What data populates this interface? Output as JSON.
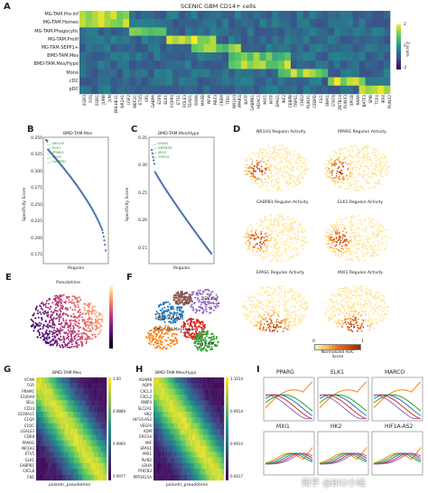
{
  "panelA": {
    "label": "A",
    "title": "SCENIC GBM CD14+ cells",
    "rows": [
      "MG-TAM.Pro-inf",
      "MG-TAM.Homeo",
      "MG-TAM.Phagocytic",
      "MG-TAM.Prolif",
      "MG-TAM.SEPP1+",
      "BMD-TAM.Mes",
      "BMD-TAM.Mes/Hypo",
      "Mono",
      "cDC",
      "pDC"
    ],
    "cols": [
      "EGR3",
      "FOS",
      "EGR1",
      "JUNB",
      "JUN",
      "BHLHE41",
      "NR2A1",
      "USF2",
      "MEF2C",
      "ETV5",
      "SP1",
      "GABPA",
      "E2F6",
      "ELK1",
      "FOXP4",
      "ETS1",
      "POLE3",
      "TEAD1",
      "RXRA",
      "MAFB",
      "NFIA",
      "PBX3",
      "CREM",
      "TFEC",
      "NR1H3",
      "PPARG",
      "BATF",
      "GABPB1",
      "HDAC1",
      "MXI1",
      "MITF",
      "EPAS1",
      "IRF2",
      "CEBPB",
      "TRPS1",
      "CHD2",
      "RUNX1",
      "CEBPD",
      "FLI1",
      "SNAI1",
      "STAT6",
      "ZBTB14",
      "RUNX3",
      "SPI1B",
      "RARA",
      "BATF3",
      "SPIB",
      "TCF4",
      "IRF8",
      "RUNX2"
    ],
    "colorbar_ticks": [
      "2",
      "0",
      "-2"
    ],
    "colorbar_label": "Z-score"
  },
  "panelB": {
    "label": "B",
    "title": "BMD-TAM.Mes",
    "ylabel": "Specificity Score",
    "xlabel": "Regulon",
    "yticks": [
      "0.350",
      "0.325",
      "0.300",
      "0.275",
      "0.250",
      "0.225",
      "0.200",
      "0.175"
    ],
    "annotations": [
      "NR1H3",
      "ELK1",
      "PPARG",
      "ETV5",
      "GABPB1"
    ]
  },
  "panelC": {
    "label": "C",
    "title": "BMD-TAM.Mes/Hypo",
    "ylabel": "Specificity Score",
    "xlabel": "Regulon",
    "yticks": [
      "0.35",
      "0.30",
      "0.25",
      "0.20",
      "0.15"
    ],
    "annotations": [
      "EPAS1",
      "ZBTB7B",
      "MXI1",
      "TSPO2"
    ]
  },
  "panelD": {
    "label": "D",
    "maps": [
      "NR1H3 Regulon Activity",
      "PPARG Regulon Activity",
      "GABPB1 Regulon Activity",
      "ELK1 Regulon Activity",
      "EPAS1 Regulon Activity",
      "MXI1 Regulon Activity"
    ],
    "legend_min": "0",
    "legend_max": "1",
    "legend_title": "Normalized AUC Score"
  },
  "panelE": {
    "label": "E",
    "title": "Pseudotime"
  },
  "panelF": {
    "label": "F",
    "clusters": [
      "IFN low",
      "BMD-TAM.Mes",
      "BMD-TAM.Mes/Hypo",
      "IFN high"
    ]
  },
  "panelG": {
    "label": "G",
    "title": "BMD-TAM.Mes",
    "xlabel": "palantir_pseudotime",
    "genes": [
      "VCAN",
      "FGR",
      "PRAM1",
      "S100A9",
      "SELL",
      "CD14",
      "S100A11",
      "C1QA",
      "C1QC",
      "LGALS3",
      "CD68",
      "PPARG",
      "NR1H3",
      "ETV5",
      "ELK1",
      "GABPB1",
      "CXCL8",
      "FN1"
    ],
    "side_ticks": [
      "1.00",
      "0.9889",
      "0.9960",
      "0.9977"
    ]
  },
  "panelH": {
    "label": "H",
    "title": "BMD-TAM.Mes/Hypo",
    "xlabel": "palantir_pseudotime",
    "genes": [
      "ADAM8",
      "AQP9",
      "CXCL3",
      "CXCL2",
      "BNIP3",
      "SLC2A1",
      "HK2",
      "HIF1A-AS2",
      "VEGFA",
      "ADM",
      "ERO1A",
      "MIF",
      "EPAS1",
      "MXI1",
      "PLIN2",
      "LDHA",
      "PFKFB3",
      "PPP1R15A"
    ],
    "side_ticks": [
      "1.1014",
      "0.9914",
      "0.9914",
      "0.0017"
    ]
  },
  "panelI": {
    "label": "I",
    "plots": [
      "PPARG",
      "ELK1",
      "MARCO",
      "MXI1",
      "HK2",
      "HIF1A-AS2"
    ]
  },
  "watermark": "知乎 @BIO小站"
}
